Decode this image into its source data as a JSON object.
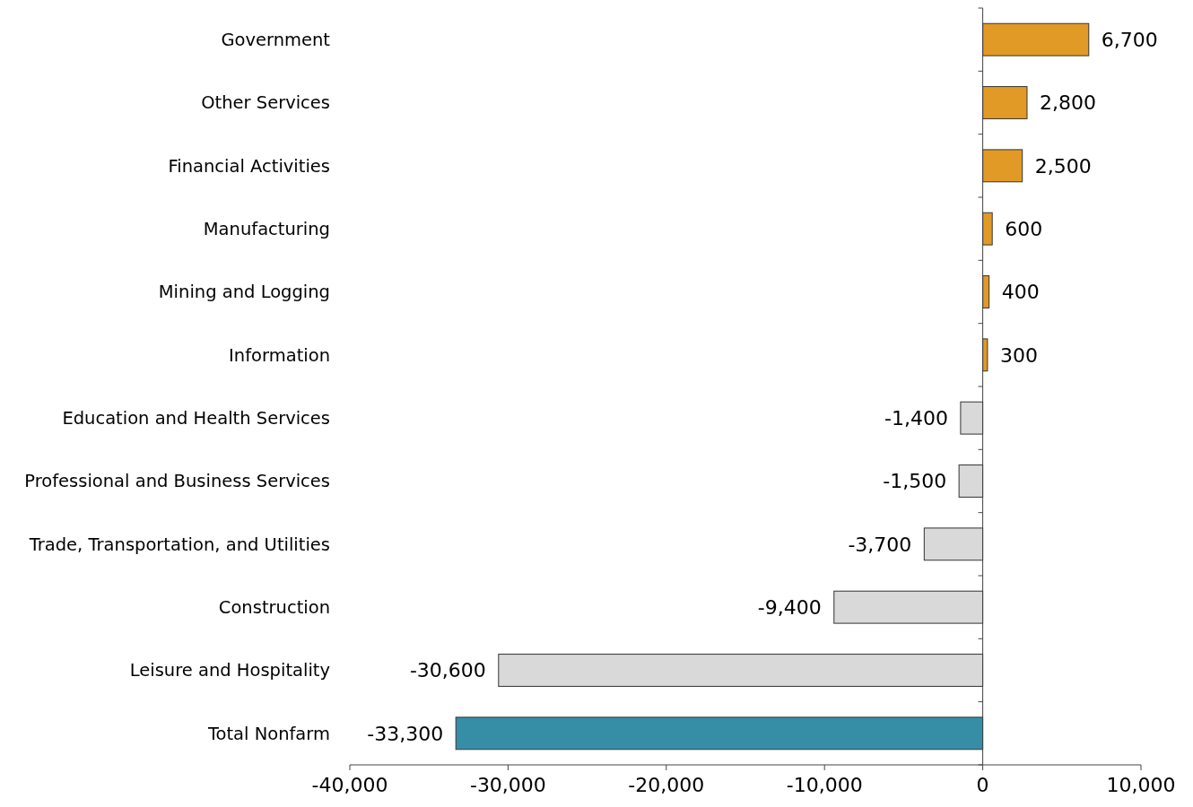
{
  "chart_data": {
    "type": "bar",
    "orientation": "horizontal",
    "categories": [
      "Government",
      "Other Services",
      "Financial Activities",
      "Manufacturing",
      "Mining and Logging",
      "Information",
      "Education and Health Services",
      "Professional and Business Services",
      "Trade, Transportation, and Utilities",
      "Construction",
      "Leisure and Hospitality",
      "Total Nonfarm"
    ],
    "values": [
      6700,
      2800,
      2500,
      600,
      400,
      300,
      -1400,
      -1500,
      -3700,
      -9400,
      -30600,
      -33300
    ],
    "colors": [
      "#e29a26",
      "#e29a26",
      "#e29a26",
      "#e29a26",
      "#e29a26",
      "#e29a26",
      "#d9d9d9",
      "#d9d9d9",
      "#d9d9d9",
      "#d9d9d9",
      "#d9d9d9",
      "#358ea6"
    ],
    "xlim": [
      -40000,
      10000
    ],
    "xticks": [
      {
        "value": -40000,
        "label": "-40,000"
      },
      {
        "value": -30000,
        "label": "-30,000"
      },
      {
        "value": -20000,
        "label": "-20,000"
      },
      {
        "value": -10000,
        "label": "-10,000"
      },
      0,
      {
        "value": 10000,
        "label": "10,000"
      }
    ],
    "value_labels": [
      "6,700",
      "2,800",
      "2,500",
      "600",
      "400",
      "300",
      "-1,400",
      "-1,500",
      "-3,700",
      "-9,400",
      "-30,600",
      "-33,300"
    ]
  }
}
